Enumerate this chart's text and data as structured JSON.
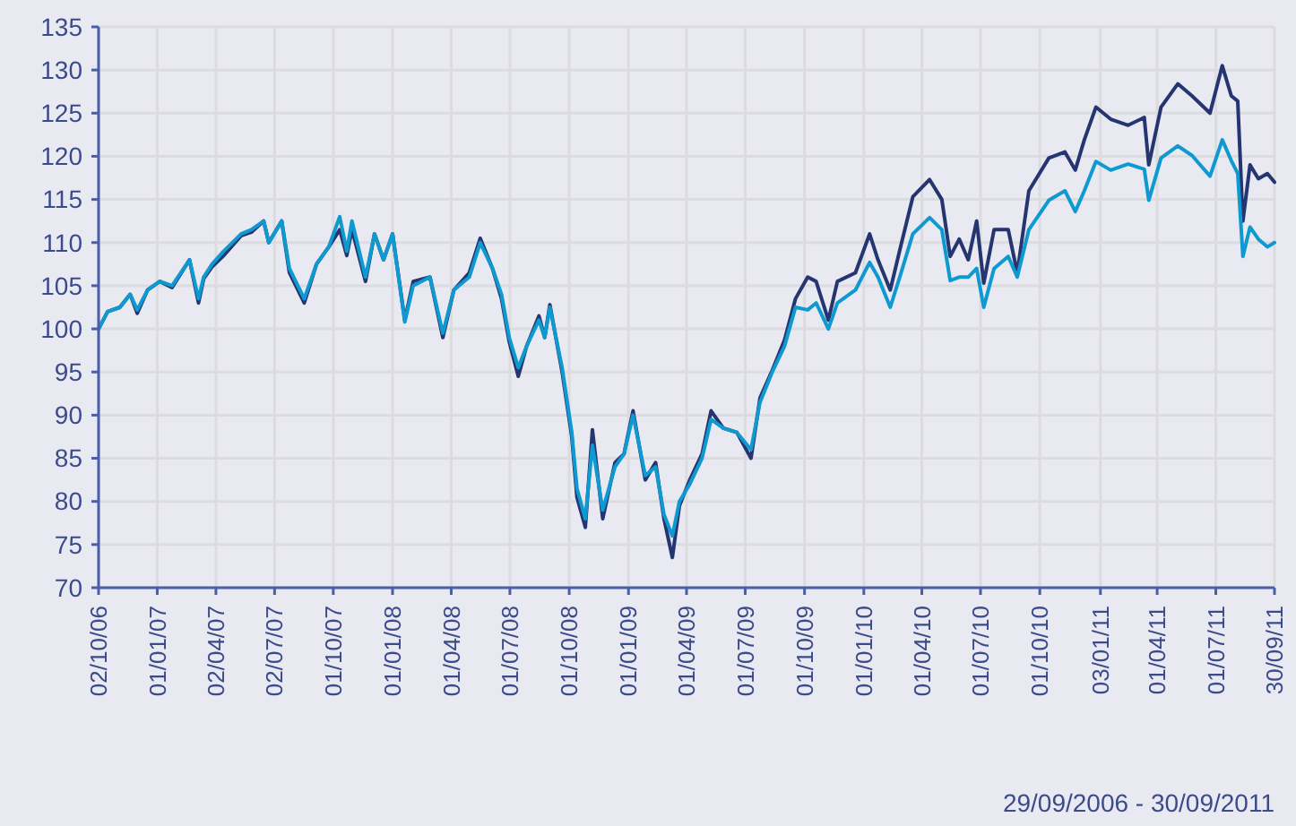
{
  "chart_data": {
    "type": "line",
    "annotations": [
      "29/09/2006 - 30/09/2011"
    ],
    "grid": true,
    "xlim": [
      "2006-10-02",
      "2011-09-30"
    ],
    "xticks": [
      {
        "value": "2006-10-02",
        "label": "02/10/06"
      },
      {
        "value": "2007-01-01",
        "label": "01/01/07"
      },
      {
        "value": "2007-04-02",
        "label": "02/04/07"
      },
      {
        "value": "2007-07-02",
        "label": "02/07/07"
      },
      {
        "value": "2007-10-01",
        "label": "01/10/07"
      },
      {
        "value": "2008-01-01",
        "label": "01/01/08"
      },
      {
        "value": "2008-04-01",
        "label": "01/04/08"
      },
      {
        "value": "2008-07-01",
        "label": "01/07/08"
      },
      {
        "value": "2008-10-01",
        "label": "01/10/08"
      },
      {
        "value": "2009-01-01",
        "label": "01/01/09"
      },
      {
        "value": "2009-04-01",
        "label": "01/04/09"
      },
      {
        "value": "2009-07-01",
        "label": "01/07/09"
      },
      {
        "value": "2009-10-01",
        "label": "01/10/09"
      },
      {
        "value": "2010-01-01",
        "label": "01/01/10"
      },
      {
        "value": "2010-04-01",
        "label": "01/04/10"
      },
      {
        "value": "2010-07-01",
        "label": "01/07/10"
      },
      {
        "value": "2010-10-01",
        "label": "01/10/10"
      },
      {
        "value": "2011-01-03",
        "label": "03/01/11"
      },
      {
        "value": "2011-04-01",
        "label": "01/04/11"
      },
      {
        "value": "2011-07-01",
        "label": "01/07/11"
      },
      {
        "value": "2011-09-30",
        "label": "30/09/11"
      }
    ],
    "ylim": [
      70,
      135
    ],
    "yticks": [
      70,
      75,
      80,
      85,
      90,
      95,
      100,
      105,
      110,
      115,
      120,
      125,
      130,
      135
    ],
    "x": [
      "2006-10-02",
      "2006-10-16",
      "2006-11-04",
      "2006-11-20",
      "2006-12-01",
      "2006-12-17",
      "2007-01-05",
      "2007-01-24",
      "2007-02-20",
      "2007-03-06",
      "2007-03-14",
      "2007-03-27",
      "2007-04-14",
      "2007-05-11",
      "2007-05-27",
      "2007-06-15",
      "2007-06-23",
      "2007-07-13",
      "2007-07-25",
      "2007-08-17",
      "2007-09-05",
      "2007-09-24",
      "2007-10-11",
      "2007-10-22",
      "2007-10-30",
      "2007-11-20",
      "2007-12-04",
      "2007-12-18",
      "2008-01-01",
      "2008-01-20",
      "2008-02-02",
      "2008-02-28",
      "2008-03-19",
      "2008-04-05",
      "2008-04-29",
      "2008-05-16",
      "2008-06-04",
      "2008-06-18",
      "2008-06-30",
      "2008-07-14",
      "2008-07-27",
      "2008-08-15",
      "2008-08-24",
      "2008-09-01",
      "2008-09-20",
      "2008-10-05",
      "2008-10-13",
      "2008-10-26",
      "2008-11-06",
      "2008-11-22",
      "2008-12-11",
      "2008-12-25",
      "2009-01-08",
      "2009-01-27",
      "2009-02-12",
      "2009-02-25",
      "2009-03-10",
      "2009-03-21",
      "2009-04-06",
      "2009-04-25",
      "2009-05-09",
      "2009-05-28",
      "2009-06-18",
      "2009-07-10",
      "2009-07-24",
      "2009-08-12",
      "2009-08-31",
      "2009-09-17",
      "2009-10-06",
      "2009-10-19",
      "2009-11-07",
      "2009-11-21",
      "2009-12-19",
      "2010-01-10",
      "2010-01-23",
      "2010-02-11",
      "2010-02-27",
      "2010-03-18",
      "2010-04-13",
      "2010-05-02",
      "2010-05-15",
      "2010-05-29",
      "2010-06-12",
      "2010-06-25",
      "2010-07-06",
      "2010-07-22",
      "2010-08-13",
      "2010-08-27",
      "2010-09-14",
      "2010-10-15",
      "2010-11-09",
      "2010-11-25",
      "2010-12-09",
      "2010-12-27",
      "2011-01-19",
      "2011-02-15",
      "2011-03-12",
      "2011-03-19",
      "2011-04-07",
      "2011-05-03",
      "2011-05-25",
      "2011-06-22",
      "2011-07-11",
      "2011-07-25",
      "2011-08-04",
      "2011-08-12",
      "2011-08-23",
      "2011-09-05",
      "2011-09-19",
      "2011-09-30"
    ],
    "series": [
      {
        "color": "#253570",
        "values": [
          100,
          102,
          102.5,
          104,
          101.8,
          104.5,
          105.5,
          104.8,
          108,
          103,
          105.8,
          107.2,
          108.5,
          110.8,
          111.2,
          112.5,
          110,
          112.5,
          106.5,
          103,
          107.5,
          109.5,
          111.5,
          108.5,
          111.5,
          105.5,
          111,
          108,
          111,
          101,
          105.5,
          106,
          99,
          104.5,
          106.5,
          110.5,
          107,
          103.5,
          98.5,
          94.5,
          98,
          101.5,
          99,
          102.8,
          95,
          87.5,
          80.5,
          77,
          88.3,
          78,
          84.5,
          85.5,
          90.5,
          82.5,
          84.5,
          78,
          73.5,
          79.5,
          82.5,
          85.5,
          90.5,
          88.5,
          88,
          85,
          92,
          95.2,
          98.7,
          103.5,
          106,
          105.5,
          101,
          105.5,
          106.5,
          111,
          108,
          104.5,
          109.5,
          115.3,
          117.3,
          115,
          108.4,
          110.4,
          108,
          112.5,
          105.3,
          111.5,
          111.5,
          106.5,
          116,
          119.8,
          120.5,
          118.4,
          121.9,
          125.7,
          124.3,
          123.6,
          124.5,
          119,
          125.7,
          128.4,
          127,
          125,
          130.5,
          127,
          126.4,
          112.5,
          119,
          117.4,
          118,
          117
        ]
      },
      {
        "color": "#0e9ad0",
        "values": [
          100,
          102,
          102.5,
          104,
          102.2,
          104.5,
          105.5,
          105,
          108,
          103.5,
          106,
          107.5,
          109,
          111,
          111.5,
          112.5,
          110,
          112.5,
          107,
          103.5,
          107.5,
          109.5,
          113,
          109,
          112.5,
          106,
          111,
          108,
          111,
          100.8,
          105,
          106,
          99.5,
          104.5,
          106,
          110,
          107,
          104,
          99,
          95.5,
          98,
          101,
          99,
          102.5,
          95.5,
          88,
          81.5,
          78,
          86.5,
          79,
          84,
          85.5,
          90,
          83,
          84,
          78.5,
          76,
          80,
          82,
          85,
          89.5,
          88.5,
          88,
          86,
          91.5,
          95,
          98,
          102.5,
          102.2,
          103,
          100,
          103,
          104.5,
          107.7,
          106,
          102.5,
          106.3,
          111,
          112.9,
          111.5,
          105.6,
          106,
          106,
          107,
          102.5,
          107,
          108.4,
          106,
          111.5,
          114.9,
          116,
          113.6,
          116,
          119.4,
          118.4,
          119.1,
          118.5,
          114.9,
          119.8,
          121.2,
          120.1,
          117.7,
          121.9,
          119.5,
          118,
          108.4,
          111.8,
          110.4,
          109.5,
          110
        ]
      }
    ]
  }
}
